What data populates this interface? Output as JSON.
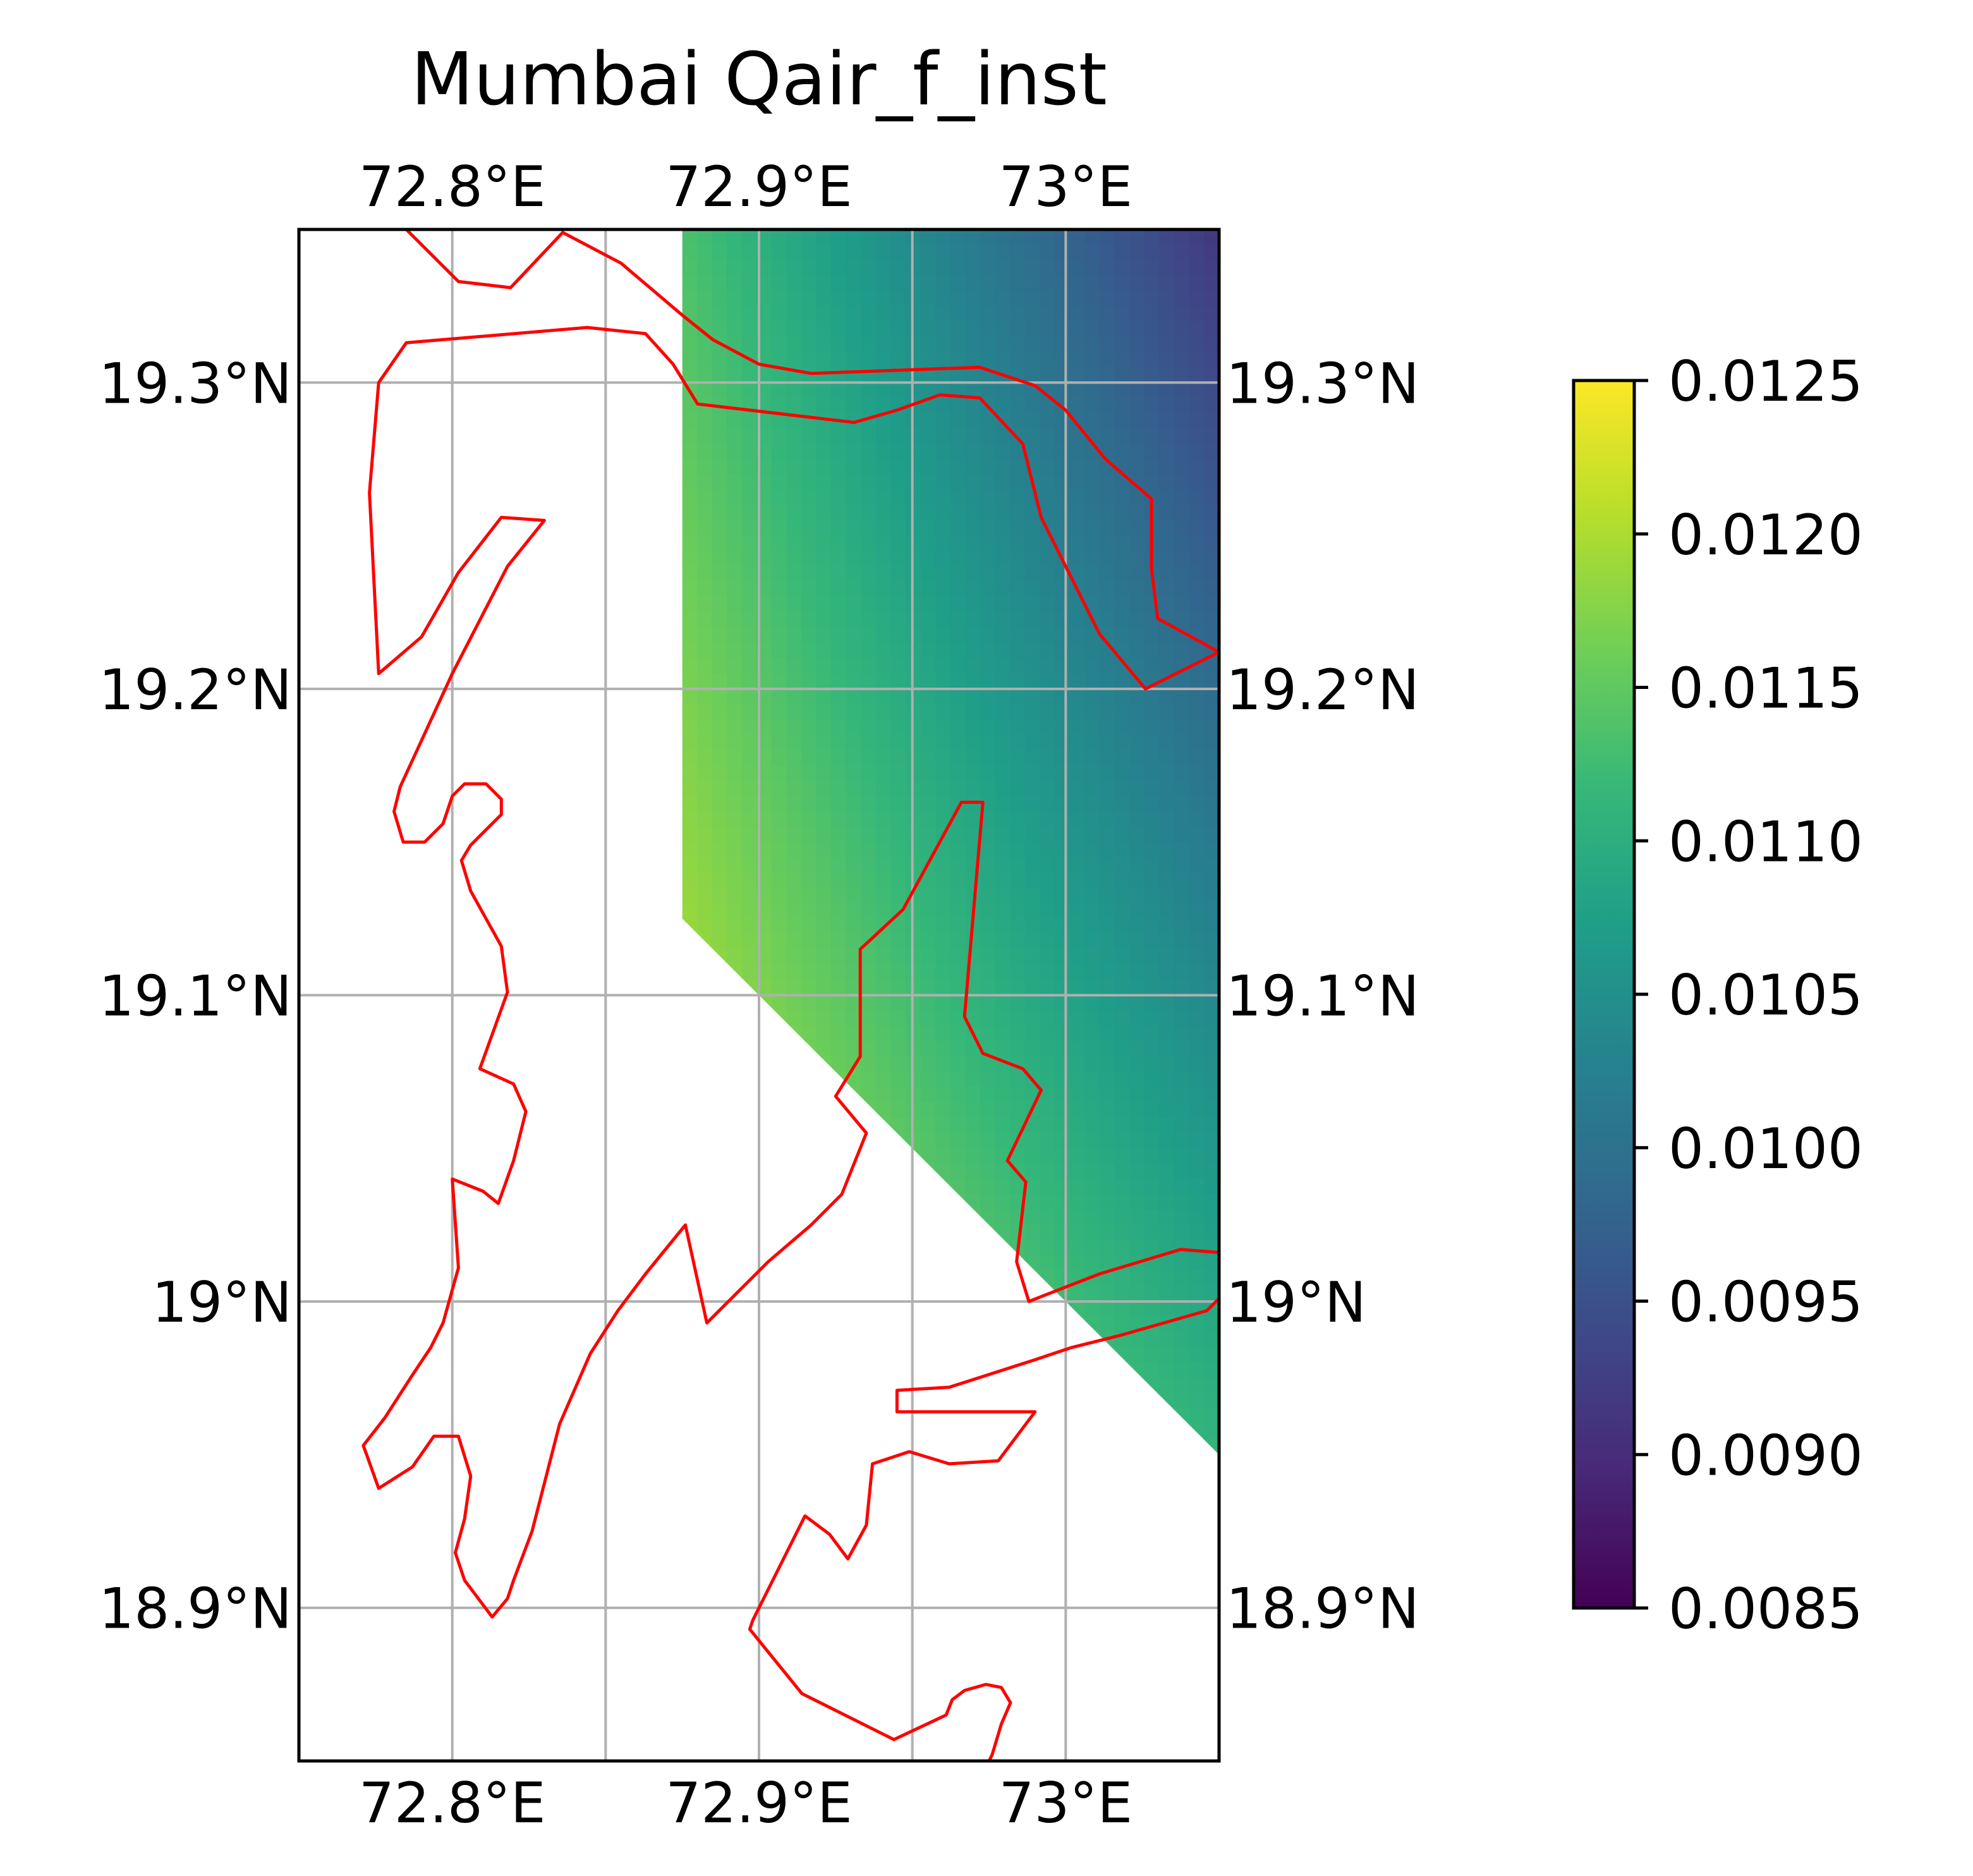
{
  "title": "Mumbai Qair_f_inst",
  "axes": {
    "lon_range": [
      72.75,
      73.05
    ],
    "lat_range": [
      18.85,
      19.35
    ],
    "lon_ticks": [
      {
        "value": 72.8,
        "label": "72.8°E"
      },
      {
        "value": 72.9,
        "label": "72.9°E"
      },
      {
        "value": 73.0,
        "label": "73°E"
      }
    ],
    "lon_gridlines": [
      72.8,
      72.85,
      72.9,
      72.95,
      73.0
    ],
    "lat_ticks": [
      {
        "value": 19.3,
        "label": "19.3°N"
      },
      {
        "value": 19.2,
        "label": "19.2°N"
      },
      {
        "value": 19.1,
        "label": "19.1°N"
      },
      {
        "value": 19.0,
        "label": "19°N"
      },
      {
        "value": 18.9,
        "label": "18.9°N"
      }
    ],
    "grid": true
  },
  "field": {
    "variable": "Qair_f_inst",
    "colormap": "viridis",
    "corner_values": {
      "nw": 0.01135,
      "ne": 0.00915,
      "sw": 0.0123,
      "se": 0.0111
    },
    "data_region": [
      [
        72.875,
        19.35
      ],
      [
        73.05,
        19.35
      ],
      [
        73.05,
        18.95
      ],
      [
        72.875,
        19.125
      ]
    ]
  },
  "colorbar": {
    "range": [
      0.0085,
      0.0125
    ],
    "ticks": [
      {
        "value": 0.0125,
        "label": "0.0125"
      },
      {
        "value": 0.012,
        "label": "0.0120"
      },
      {
        "value": 0.0115,
        "label": "0.0115"
      },
      {
        "value": 0.011,
        "label": "0.0110"
      },
      {
        "value": 0.0105,
        "label": "0.0105"
      },
      {
        "value": 0.01,
        "label": "0.0100"
      },
      {
        "value": 0.0095,
        "label": "0.0095"
      },
      {
        "value": 0.009,
        "label": "0.0090"
      },
      {
        "value": 0.0085,
        "label": "0.0085"
      }
    ]
  },
  "colors": {
    "coastline": "#ff0000",
    "grid": "#b0b0b0",
    "viridis": [
      "#440154",
      "#482878",
      "#3e4989",
      "#31688e",
      "#26828e",
      "#1f9e89",
      "#35b779",
      "#6ece58",
      "#b5de2b",
      "#fde725"
    ]
  },
  "coastlines": [
    [
      [
        72.785,
        19.35
      ],
      [
        72.79,
        19.345
      ],
      [
        72.802,
        19.333
      ],
      [
        72.819,
        19.331
      ],
      [
        72.836,
        19.349
      ],
      [
        72.855,
        19.339
      ],
      [
        72.875,
        19.322
      ],
      [
        72.885,
        19.314
      ],
      [
        72.9,
        19.306
      ],
      [
        72.917,
        19.303
      ],
      [
        72.972,
        19.305
      ],
      [
        72.99,
        19.299
      ],
      [
        73.0,
        19.291
      ],
      [
        73.013,
        19.275
      ],
      [
        73.028,
        19.262
      ],
      [
        73.028,
        19.239
      ],
      [
        73.03,
        19.223
      ],
      [
        73.05,
        19.212
      ],
      [
        73.026,
        19.2
      ],
      [
        73.011,
        19.218
      ],
      [
        72.992,
        19.256
      ],
      [
        72.986,
        19.28
      ],
      [
        72.972,
        19.295
      ],
      [
        72.959,
        19.296
      ],
      [
        72.945,
        19.291
      ],
      [
        72.931,
        19.287
      ],
      [
        72.88,
        19.293
      ],
      [
        72.872,
        19.306
      ],
      [
        72.863,
        19.316
      ],
      [
        72.844,
        19.318
      ],
      [
        72.785,
        19.313
      ],
      [
        72.776,
        19.3
      ],
      [
        72.773,
        19.264
      ],
      [
        72.776,
        19.205
      ],
      [
        72.79,
        19.217
      ],
      [
        72.802,
        19.238
      ],
      [
        72.816,
        19.256
      ],
      [
        72.83,
        19.255
      ],
      [
        72.818,
        19.24
      ],
      [
        72.8,
        19.205
      ],
      [
        72.783,
        19.168
      ],
      [
        72.781,
        19.16
      ],
      [
        72.784,
        19.15
      ],
      [
        72.791,
        19.15
      ],
      [
        72.797,
        19.156
      ],
      [
        72.8,
        19.165
      ],
      [
        72.804,
        19.169
      ],
      [
        72.811,
        19.169
      ],
      [
        72.816,
        19.164
      ],
      [
        72.816,
        19.159
      ],
      [
        72.806,
        19.149
      ],
      [
        72.803,
        19.144
      ],
      [
        72.806,
        19.134
      ],
      [
        72.816,
        19.116
      ],
      [
        72.818,
        19.101
      ],
      [
        72.809,
        19.076
      ],
      [
        72.82,
        19.071
      ],
      [
        72.824,
        19.062
      ],
      [
        72.82,
        19.046
      ],
      [
        72.815,
        19.032
      ],
      [
        72.81,
        19.036
      ],
      [
        72.8,
        19.04
      ],
      [
        72.802,
        19.011
      ],
      [
        72.797,
        18.993
      ],
      [
        72.793,
        18.985
      ],
      [
        72.787,
        18.976
      ],
      [
        72.778,
        18.962
      ],
      [
        72.771,
        18.953
      ],
      [
        72.776,
        18.939
      ],
      [
        72.787,
        18.946
      ],
      [
        72.794,
        18.956
      ],
      [
        72.802,
        18.956
      ],
      [
        72.806,
        18.943
      ],
      [
        72.804,
        18.929
      ],
      [
        72.801,
        18.918
      ],
      [
        72.804,
        18.909
      ],
      [
        72.813,
        18.897
      ],
      [
        72.818,
        18.903
      ],
      [
        72.82,
        18.909
      ],
      [
        72.826,
        18.925
      ],
      [
        72.835,
        18.96
      ],
      [
        72.845,
        18.983
      ],
      [
        72.854,
        18.997
      ],
      [
        72.863,
        19.009
      ],
      [
        72.876,
        19.025
      ],
      [
        72.883,
        18.993
      ],
      [
        72.895,
        19.005
      ],
      [
        72.903,
        19.013
      ],
      [
        72.917,
        19.025
      ],
      [
        72.927,
        19.035
      ],
      [
        72.935,
        19.055
      ],
      [
        72.925,
        19.067
      ],
      [
        72.933,
        19.08
      ],
      [
        72.933,
        19.115
      ],
      [
        72.947,
        19.128
      ],
      [
        72.966,
        19.163
      ],
      [
        72.973,
        19.163
      ],
      [
        72.967,
        19.093
      ],
      [
        72.973,
        19.081
      ],
      [
        72.986,
        19.076
      ],
      [
        72.992,
        19.069
      ],
      [
        72.981,
        19.046
      ],
      [
        72.987,
        19.039
      ],
      [
        72.984,
        19.013
      ],
      [
        72.988,
        19.0
      ],
      [
        72.993,
        19.002
      ],
      [
        73.011,
        19.009
      ],
      [
        73.0375,
        19.017
      ],
      [
        73.05,
        19.016
      ]
    ],
    [
      [
        73.05,
        19.001
      ],
      [
        73.046,
        18.997
      ],
      [
        73.032,
        18.993
      ],
      [
        73.018,
        18.989
      ],
      [
        73.002,
        18.985
      ],
      [
        72.99,
        18.981
      ],
      [
        72.962,
        18.972
      ],
      [
        72.945,
        18.971
      ],
      [
        72.945,
        18.964
      ],
      [
        72.99,
        18.964
      ],
      [
        72.978,
        18.948
      ],
      [
        72.962,
        18.947
      ],
      [
        72.949,
        18.951
      ],
      [
        72.937,
        18.947
      ],
      [
        72.935,
        18.927
      ],
      [
        72.929,
        18.916
      ],
      [
        72.923,
        18.924
      ],
      [
        72.915,
        18.93
      ],
      [
        72.898,
        18.896
      ],
      [
        72.897,
        18.893
      ],
      [
        72.914,
        18.872
      ],
      [
        72.944,
        18.857
      ],
      [
        72.961,
        18.865
      ],
      [
        72.963,
        18.87
      ],
      [
        72.967,
        18.873
      ],
      [
        72.974,
        18.875
      ],
      [
        72.979,
        18.874
      ],
      [
        72.982,
        18.869
      ],
      [
        72.979,
        18.862
      ],
      [
        72.976,
        18.852
      ],
      [
        72.975,
        18.85
      ]
    ]
  ]
}
